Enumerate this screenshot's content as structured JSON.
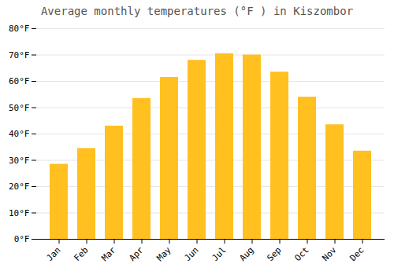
{
  "chart_data": {
    "type": "bar",
    "title": "Average monthly temperatures (°F ) in Kiszombor",
    "categories": [
      "Jan",
      "Feb",
      "Mar",
      "Apr",
      "May",
      "Jun",
      "Jul",
      "Aug",
      "Sep",
      "Oct",
      "Nov",
      "Dec"
    ],
    "values": [
      28.5,
      34.5,
      43,
      53.5,
      61.5,
      68,
      70.5,
      70,
      63.5,
      54,
      43.5,
      33.5
    ],
    "color": "#FFC020",
    "ylim": [
      0,
      80
    ],
    "yticks": [
      {
        "value": 0,
        "label": "0°F"
      },
      {
        "value": 10,
        "label": "10°F"
      },
      {
        "value": 20,
        "label": "20°F"
      },
      {
        "value": 30,
        "label": "30°F"
      },
      {
        "value": 40,
        "label": "40°F"
      },
      {
        "value": 50,
        "label": "50°F"
      },
      {
        "value": 60,
        "label": "60°F"
      },
      {
        "value": 70,
        "label": "70°F"
      },
      {
        "value": 80,
        "label": "80°F"
      }
    ],
    "grid": true
  }
}
